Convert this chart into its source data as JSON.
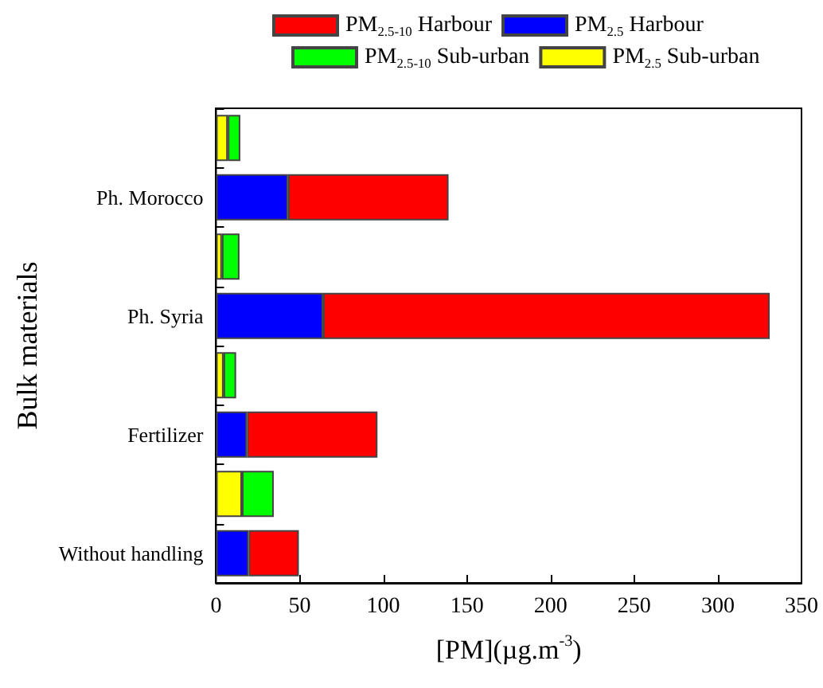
{
  "chart_data": {
    "type": "bar",
    "orientation": "horizontal",
    "stacked": true,
    "xlabel": "[PM](µg.m$^{-3}$)",
    "ylabel": "Bulk materials",
    "categories": [
      null,
      "Ph. Morocco",
      null,
      "Ph. Syria",
      null,
      "Fertilizer",
      null,
      "Without handling"
    ],
    "series": [
      {
        "name": "PM$_{2.5}$ Harbour",
        "color": "#0000ff",
        "values": [
          null,
          43,
          null,
          64,
          null,
          18.5,
          null,
          19.5
        ]
      },
      {
        "name": "PM$_{2.5-10}$ Harbour",
        "color": "#ff0000",
        "values": [
          null,
          96,
          null,
          267,
          null,
          78,
          null,
          30
        ]
      },
      {
        "name": "PM$_{2.5}$ Sub-urban",
        "color": "#ffff00",
        "values": [
          7,
          null,
          3.5,
          null,
          4.5,
          null,
          15.5,
          null
        ]
      },
      {
        "name": "PM$_{2.5-10}$ Sub-urban",
        "color": "#00ff00",
        "values": [
          7.5,
          null,
          10.5,
          null,
          7.5,
          null,
          19,
          null
        ]
      }
    ],
    "xlim": [
      0,
      350
    ],
    "xticks": [
      0,
      50,
      100,
      150,
      200,
      250,
      300,
      350
    ],
    "legend": "top",
    "grid": false
  }
}
